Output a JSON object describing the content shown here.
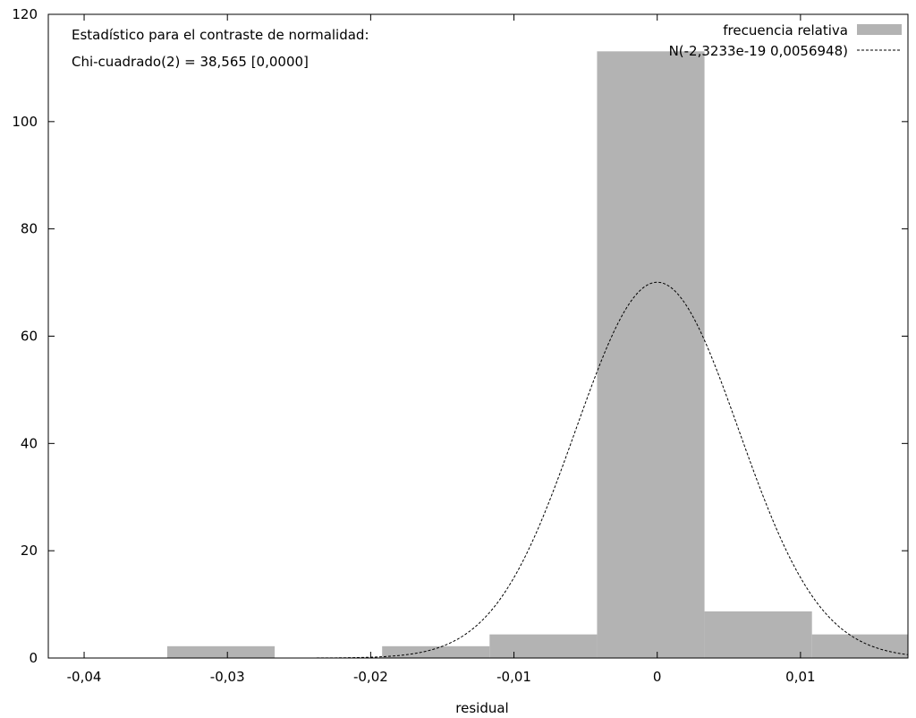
{
  "chart_data": {
    "type": "bar",
    "xlabel": "residual",
    "ylabel": "",
    "xlim": [
      -0.0425,
      0.0175
    ],
    "ylim": [
      0,
      120
    ],
    "x_ticks": [
      {
        "value": -0.04,
        "label": "-0,04"
      },
      {
        "value": -0.03,
        "label": "-0,03"
      },
      {
        "value": -0.02,
        "label": "-0,02"
      },
      {
        "value": -0.01,
        "label": "-0,01"
      },
      {
        "value": 0,
        "label": "0"
      },
      {
        "value": 0.01,
        "label": "0,01"
      }
    ],
    "y_ticks": [
      {
        "value": 0,
        "label": "0"
      },
      {
        "value": 20,
        "label": "20"
      },
      {
        "value": 40,
        "label": "40"
      },
      {
        "value": 60,
        "label": "60"
      },
      {
        "value": 80,
        "label": "80"
      },
      {
        "value": 100,
        "label": "100"
      },
      {
        "value": 120,
        "label": "120"
      }
    ],
    "annotations": [
      "Estadístico para el contraste de normalidad:",
      "Chi-cuadrado(2) = 38,565 [0,0000]"
    ],
    "legend_position": "top-right",
    "series": [
      {
        "name": "frecuencia relativa",
        "kind": "histogram",
        "color": "#b3b3b3",
        "bins": [
          {
            "x0": -0.0342,
            "x1": -0.0267,
            "value": 2.2
          },
          {
            "x0": -0.0192,
            "x1": -0.0117,
            "value": 2.2
          },
          {
            "x0": -0.0117,
            "x1": -0.0042,
            "value": 4.4
          },
          {
            "x0": -0.0042,
            "x1": 0.0033,
            "value": 113.1
          },
          {
            "x0": 0.0033,
            "x1": 0.0108,
            "value": 8.7
          },
          {
            "x0": 0.0108,
            "x1": 0.0183,
            "value": 4.4
          }
        ]
      },
      {
        "name": "N(-2,3233e-19 0,0056948)",
        "kind": "normal-density",
        "color": "#000000",
        "line_style": "dashed",
        "mean": -2.3233e-19,
        "sd": 0.0056948
      }
    ]
  }
}
